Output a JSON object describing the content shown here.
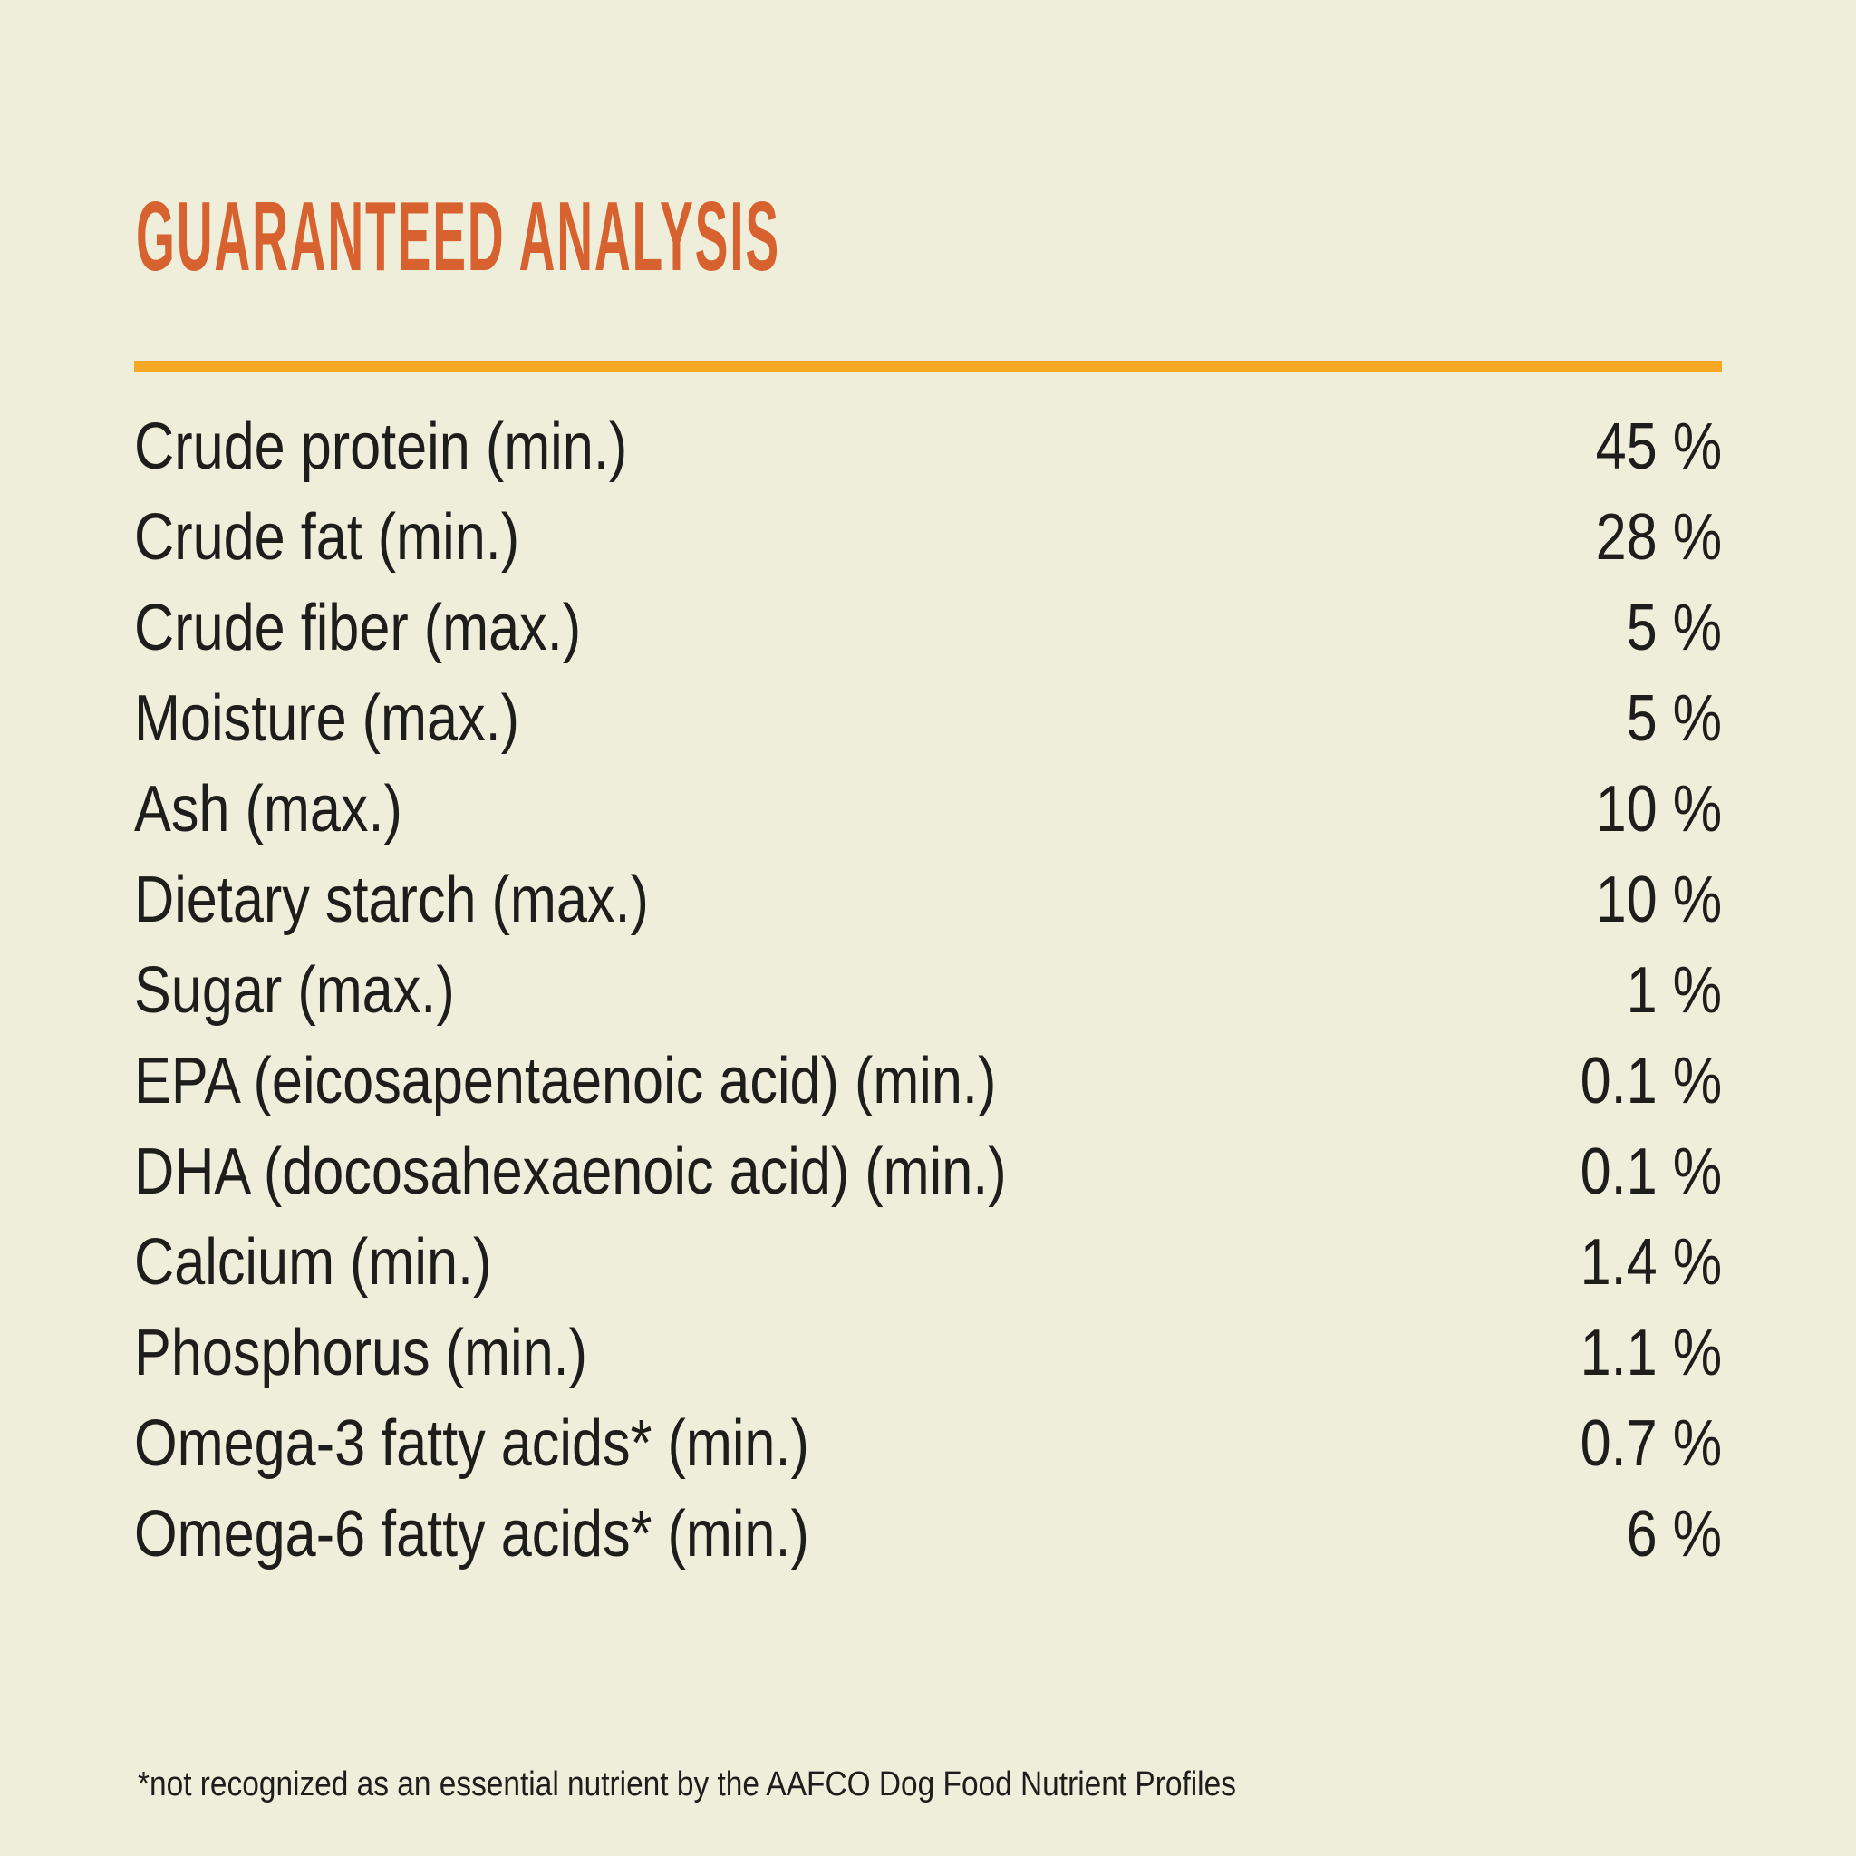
{
  "page": {
    "background_color": "#efeeda",
    "accent_color": "#d7622f",
    "divider_color": "#f6a723",
    "text_color": "#1d1d1b"
  },
  "header": {
    "title": "GUARANTEED ANALYSIS"
  },
  "analysis_table": {
    "rows": [
      {
        "label": "Crude protein (min.)",
        "value": "45 %"
      },
      {
        "label": "Crude fat (min.)",
        "value": "28 %"
      },
      {
        "label": "Crude fiber (max.)",
        "value": "5 %"
      },
      {
        "label": "Moisture (max.)",
        "value": "5 %"
      },
      {
        "label": "Ash (max.)",
        "value": "10 %"
      },
      {
        "label": "Dietary starch (max.)",
        "value": "10 %"
      },
      {
        "label": "Sugar (max.)",
        "value": "1 %"
      },
      {
        "label": "EPA (eicosapentaenoic acid) (min.)",
        "value": "0.1 %"
      },
      {
        "label": "DHA (docosahexaenoic acid) (min.)",
        "value": "0.1 %"
      },
      {
        "label": "Calcium (min.)",
        "value": "1.4 %"
      },
      {
        "label": "Phosphorus (min.)",
        "value": "1.1 %"
      },
      {
        "label": "Omega-3 fatty acids* (min.)",
        "value": "0.7 %"
      },
      {
        "label": "Omega-6 fatty acids* (min.)",
        "value": "6 %"
      }
    ]
  },
  "footnote": "*not recognized as an essential nutrient by the AAFCO Dog Food Nutrient Profiles"
}
